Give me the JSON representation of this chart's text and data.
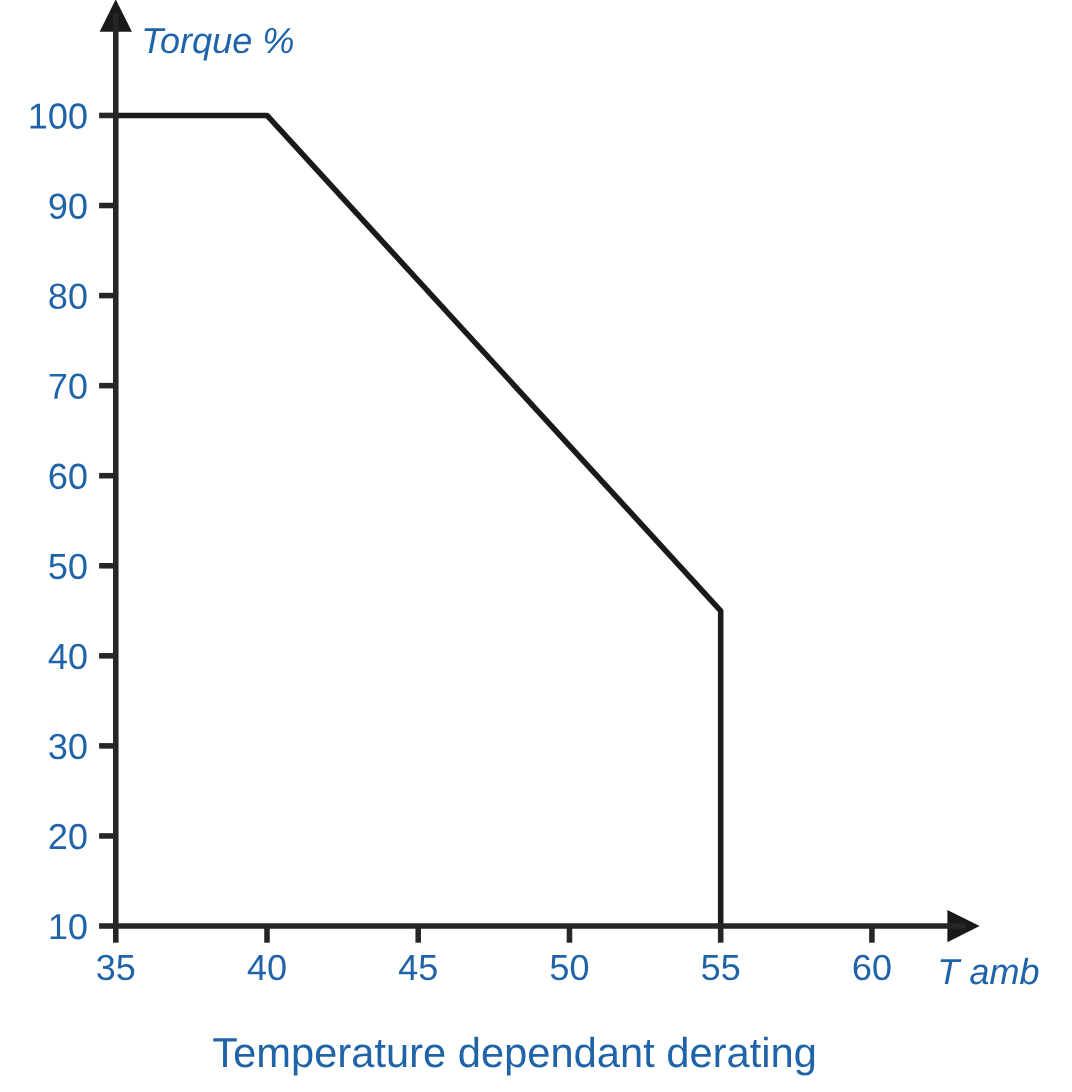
{
  "chart_data": {
    "type": "line",
    "title": "Temperature dependant derating",
    "xlabel": "T amb",
    "ylabel": "Torque %",
    "x": [
      35,
      40,
      55,
      55
    ],
    "series": [
      {
        "color": "#1a1a1a",
        "values": [
          100,
          100,
          45,
          10
        ]
      }
    ],
    "xlim": [
      35,
      63
    ],
    "ylim": [
      10,
      111
    ],
    "xticks": [
      35,
      40,
      45,
      50,
      55,
      60
    ],
    "yticks": [
      10,
      20,
      30,
      40,
      50,
      60,
      70,
      80,
      90,
      100
    ],
    "grid": false,
    "legend": false,
    "marker": "none",
    "line_style": "solid"
  }
}
